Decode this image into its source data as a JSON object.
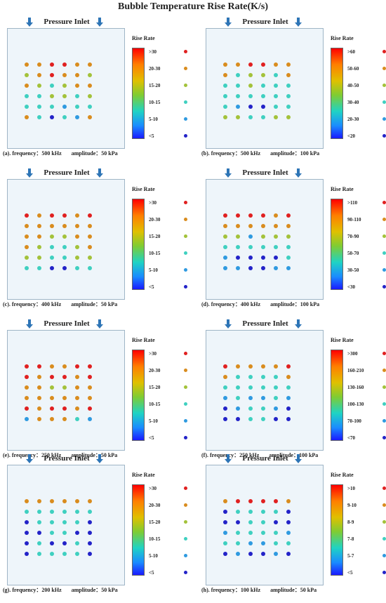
{
  "title": "Bubble Temperature Rise Rate(K/s)",
  "inlet_label": "Pressure Inlet",
  "legend_title": "Rise Rate",
  "legend_colors": [
    "#e02020",
    "#d98c1e",
    "#a3c23a",
    "#3fd0c0",
    "#2f9ae0",
    "#2323c8"
  ],
  "panels": [
    {
      "label": "(a).",
      "frequency": "frequency：500 kHz",
      "amplitude": "amplitude：50 kPa",
      "ranges": [
        ">30",
        "20-30",
        "15-20",
        "10-15",
        "5-10",
        "<5"
      ],
      "grid": [
        [
          1,
          1,
          0,
          0,
          1,
          1
        ],
        [
          2,
          1,
          0,
          1,
          1,
          2
        ],
        [
          1,
          2,
          3,
          2,
          1,
          1
        ],
        [
          3,
          3,
          2,
          2,
          3,
          2
        ],
        [
          3,
          3,
          3,
          4,
          3,
          3
        ],
        [
          1,
          3,
          5,
          3,
          4,
          1
        ]
      ]
    },
    {
      "label": "(b).",
      "frequency": "frequency：500 kHz",
      "amplitude": "amplitude：100 kPa",
      "ranges": [
        ">60",
        "50-60",
        "40-50",
        "30-40",
        "20-30",
        "<20"
      ],
      "grid": [
        [
          1,
          1,
          0,
          0,
          1,
          1
        ],
        [
          1,
          3,
          2,
          2,
          3,
          1
        ],
        [
          3,
          3,
          2,
          3,
          3,
          3
        ],
        [
          3,
          3,
          3,
          3,
          3,
          3
        ],
        [
          3,
          4,
          5,
          5,
          3,
          3
        ],
        [
          2,
          2,
          3,
          3,
          2,
          2
        ]
      ]
    },
    {
      "label": "(c).",
      "frequency": "frequency：400 kHz",
      "amplitude": "amplitude：50 kPa",
      "ranges": [
        ">30",
        "20-30",
        "15-20",
        "10-15",
        "5-10",
        "<5"
      ],
      "grid": [
        [
          0,
          1,
          0,
          0,
          1,
          0
        ],
        [
          1,
          1,
          1,
          1,
          1,
          1
        ],
        [
          1,
          1,
          2,
          2,
          1,
          1
        ],
        [
          1,
          2,
          3,
          3,
          2,
          1
        ],
        [
          2,
          2,
          3,
          3,
          2,
          2
        ],
        [
          3,
          3,
          5,
          5,
          3,
          3
        ]
      ]
    },
    {
      "label": "(d).",
      "frequency": "frequency：400 kHz",
      "amplitude": "amplitude：100 kPa",
      "ranges": [
        ">110",
        "90-110",
        "70-90",
        "50-70",
        "30-50",
        "<30"
      ],
      "grid": [
        [
          0,
          0,
          0,
          0,
          1,
          0
        ],
        [
          1,
          1,
          1,
          1,
          1,
          1
        ],
        [
          2,
          2,
          4,
          2,
          2,
          2
        ],
        [
          3,
          3,
          3,
          3,
          3,
          3
        ],
        [
          4,
          5,
          5,
          5,
          5,
          3
        ],
        [
          4,
          4,
          5,
          5,
          4,
          4
        ]
      ]
    },
    {
      "label": "(e).",
      "frequency": "frequency：250 kHz",
      "amplitude": "amplitude：50 kPa",
      "ranges": [
        ">30",
        "20-30",
        "15-20",
        "10-15",
        "5-10",
        "<5"
      ],
      "grid": [
        [
          0,
          0,
          1,
          1,
          0,
          0
        ],
        [
          0,
          1,
          0,
          0,
          1,
          0
        ],
        [
          1,
          1,
          2,
          2,
          1,
          1
        ],
        [
          1,
          1,
          1,
          1,
          1,
          1
        ],
        [
          0,
          1,
          0,
          0,
          1,
          0
        ],
        [
          4,
          1,
          1,
          1,
          3,
          4
        ]
      ]
    },
    {
      "label": "(f).",
      "frequency": "frequency：250 kHz",
      "amplitude": "amplitude：100 kPa",
      "ranges": [
        ">300",
        "160-210",
        "130-160",
        "100-130",
        "70-100",
        "<70"
      ],
      "grid": [
        [
          0,
          1,
          1,
          1,
          1,
          0
        ],
        [
          1,
          3,
          3,
          3,
          3,
          1
        ],
        [
          3,
          3,
          3,
          3,
          3,
          3
        ],
        [
          4,
          3,
          4,
          4,
          3,
          4
        ],
        [
          5,
          4,
          3,
          3,
          4,
          5
        ],
        [
          5,
          5,
          3,
          3,
          5,
          5
        ]
      ]
    },
    {
      "label": "(g).",
      "frequency": "frequency：200 kHz",
      "amplitude": "amplitude：50 kPa",
      "ranges": [
        ">30",
        "20-30",
        "15-20",
        "10-15",
        "5-10",
        "<5"
      ],
      "grid": [
        [
          1,
          1,
          1,
          1,
          1,
          1
        ],
        [
          3,
          3,
          3,
          3,
          3,
          3
        ],
        [
          5,
          3,
          3,
          3,
          3,
          5
        ],
        [
          5,
          5,
          3,
          3,
          5,
          5
        ],
        [
          5,
          3,
          5,
          5,
          3,
          5
        ],
        [
          5,
          3,
          3,
          3,
          3,
          5
        ]
      ]
    },
    {
      "label": "(h).",
      "frequency": "frequency：100 kHz",
      "amplitude": "amplitude：50 kPa",
      "ranges": [
        ">10",
        "9-10",
        "8-9",
        "7-8",
        "5-7",
        "<5"
      ],
      "grid": [
        [
          1,
          0,
          0,
          0,
          0,
          1
        ],
        [
          5,
          3,
          3,
          3,
          3,
          5
        ],
        [
          5,
          5,
          3,
          3,
          5,
          5
        ],
        [
          4,
          3,
          3,
          3,
          3,
          4
        ],
        [
          3,
          3,
          4,
          4,
          3,
          3
        ],
        [
          5,
          4,
          5,
          5,
          4,
          5
        ]
      ]
    }
  ]
}
